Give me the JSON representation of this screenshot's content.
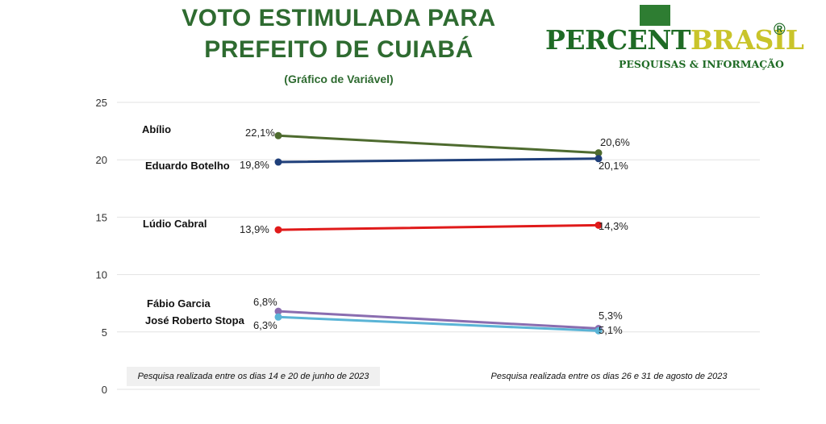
{
  "header": {
    "title_line1": "VOTO ESTIMULADA PARA",
    "title_line2": "PREFEITO DE CUIABÁ",
    "subtitle": "(Gráfico de Variável)"
  },
  "logo": {
    "part1": "PERCENT",
    "part2": "BRASIL",
    "registered": "®",
    "tagline": "PESQUISAS & INFORMAÇÃO"
  },
  "notes": {
    "left": "Pesquisa realizada entre os dias 14 e 20 de junho de 2023",
    "right": "Pesquisa realizada entre os dias 26 e 31 de agosto de 2023"
  },
  "chart_data": {
    "type": "line",
    "x": [
      "Pesquisa realizada entre os dias 14 e 20 de junho de 2023",
      "Pesquisa realizada entre os dias 26 e 31 de agosto de 2023"
    ],
    "ylim": [
      0,
      25
    ],
    "yticks": [
      "0",
      "5",
      "10",
      "15",
      "20",
      "25"
    ],
    "grid": true,
    "series": [
      {
        "name": "Abílio",
        "values": [
          22.1,
          20.6
        ],
        "labels": [
          "22,1%",
          "20,6%"
        ],
        "color": "#4e6b2f"
      },
      {
        "name": "Eduardo Botelho",
        "values": [
          19.8,
          20.1
        ],
        "labels": [
          "19,8%",
          "20,1%"
        ],
        "color": "#1f3f7a"
      },
      {
        "name": "Lúdio Cabral",
        "values": [
          13.9,
          14.3
        ],
        "labels": [
          "13,9%",
          "14,3%"
        ],
        "color": "#e01a1a"
      },
      {
        "name": "Fábio Garcia",
        "values": [
          6.8,
          5.3
        ],
        "labels": [
          "6,8%",
          "5,3%"
        ],
        "color": "#8a6db0"
      },
      {
        "name": "José Roberto Stopa",
        "values": [
          6.3,
          5.1
        ],
        "labels": [
          "6,3%",
          "5,1%"
        ],
        "color": "#5ab4d6"
      }
    ]
  }
}
